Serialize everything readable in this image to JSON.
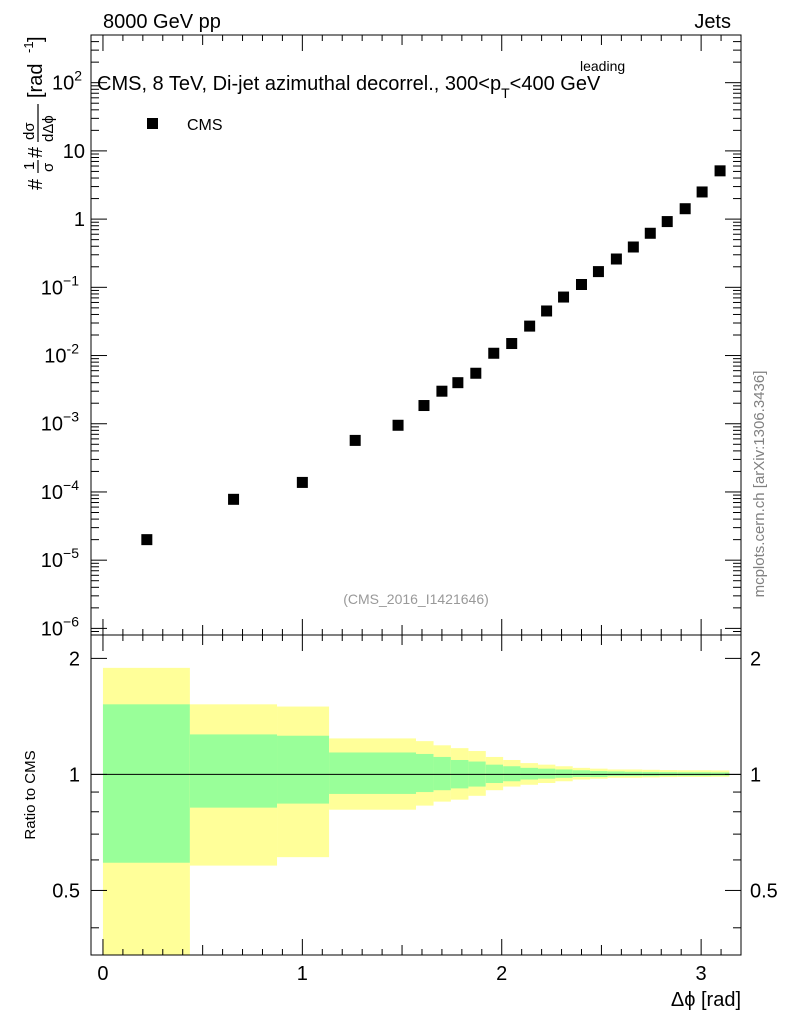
{
  "header": {
    "left": "8000 GeV pp",
    "right": "Jets"
  },
  "top_plot": {
    "title_prefix": "CMS, 8 TeV, Di-jet azimuthal decorrel., 300<p",
    "title_sub": "T",
    "title_sup": "leading",
    "title_suffix": "<400 GeV",
    "legend_label": "CMS",
    "analysis_tag": "(CMS_2016_I1421646)",
    "ylabel_parts": [
      "#",
      "1",
      "σ",
      "#",
      "dσ",
      "dΔϕ",
      "[rad",
      "-1",
      "]"
    ],
    "ytick_labels": [
      {
        "mant": "10",
        "exp": "2"
      },
      {
        "mant": "10",
        "exp": ""
      },
      {
        "mant": "1",
        "exp": ""
      },
      {
        "mant": "10",
        "exp": "−1"
      },
      {
        "mant": "10",
        "exp": "-2"
      },
      {
        "mant": "10",
        "exp": "−3"
      },
      {
        "mant": "10",
        "exp": "−4"
      },
      {
        "mant": "10",
        "exp": "−5"
      },
      {
        "mant": "10",
        "exp": "−6"
      }
    ]
  },
  "ratio_plot": {
    "ylabel": "Ratio to CMS",
    "ytick_labels": [
      "2",
      "1",
      "0.5"
    ]
  },
  "xaxis": {
    "label": "Δϕ [rad]",
    "tick_labels": [
      "0",
      "1",
      "2",
      "3"
    ]
  },
  "side_label": "mcplots.cern.ch [arXiv:1306.3436]",
  "colors": {
    "band_outer": "#ffff99",
    "band_inner": "#99ff99",
    "marker": "#000000",
    "side_text": "#808080",
    "tag_text": "#999999"
  },
  "chart_data": {
    "type": "scatter",
    "yscale": "log",
    "xlim": [
      -0.06,
      3.2
    ],
    "ylim": [
      8e-07,
      500
    ],
    "series": [
      {
        "name": "CMS",
        "x": [
          0.22,
          0.655,
          1.0,
          1.265,
          1.48,
          1.61,
          1.7,
          1.78,
          1.87,
          1.96,
          2.05,
          2.14,
          2.225,
          2.31,
          2.4,
          2.485,
          2.575,
          2.66,
          2.745,
          2.83,
          2.92,
          3.005,
          3.095
        ],
        "y": [
          2e-05,
          7.8e-05,
          0.000138,
          0.00057,
          0.00095,
          0.00185,
          0.003,
          0.004,
          0.0055,
          0.0108,
          0.015,
          0.027,
          0.045,
          0.072,
          0.11,
          0.17,
          0.26,
          0.39,
          0.62,
          0.92,
          1.42,
          2.5,
          5.1
        ]
      }
    ],
    "ratio": {
      "ylim": [
        0.34,
        2.3
      ],
      "yscale": "log",
      "reference": 1.0,
      "bands": [
        {
          "x0": 0.0,
          "x1": 0.436,
          "outer": [
            0.34,
            1.89
          ],
          "inner": [
            0.59,
            1.52
          ]
        },
        {
          "x0": 0.436,
          "x1": 0.873,
          "outer": [
            0.58,
            1.52
          ],
          "inner": [
            0.82,
            1.27
          ]
        },
        {
          "x0": 0.873,
          "x1": 1.134,
          "outer": [
            0.61,
            1.5
          ],
          "inner": [
            0.84,
            1.26
          ]
        },
        {
          "x0": 1.134,
          "x1": 1.57,
          "outer": [
            0.81,
            1.24
          ],
          "inner": [
            0.89,
            1.14
          ]
        },
        {
          "x0": 1.57,
          "x1": 1.658,
          "outer": [
            0.83,
            1.22
          ],
          "inner": [
            0.9,
            1.13
          ]
        },
        {
          "x0": 1.658,
          "x1": 1.745,
          "outer": [
            0.85,
            1.19
          ],
          "inner": [
            0.91,
            1.11
          ]
        },
        {
          "x0": 1.745,
          "x1": 1.833,
          "outer": [
            0.86,
            1.17
          ],
          "inner": [
            0.92,
            1.09
          ]
        },
        {
          "x0": 1.833,
          "x1": 1.92,
          "outer": [
            0.88,
            1.15
          ],
          "inner": [
            0.93,
            1.08
          ]
        },
        {
          "x0": 1.92,
          "x1": 2.007,
          "outer": [
            0.91,
            1.11
          ],
          "inner": [
            0.95,
            1.06
          ]
        },
        {
          "x0": 2.007,
          "x1": 2.094,
          "outer": [
            0.93,
            1.09
          ],
          "inner": [
            0.96,
            1.05
          ]
        },
        {
          "x0": 2.094,
          "x1": 2.182,
          "outer": [
            0.94,
            1.07
          ],
          "inner": [
            0.97,
            1.04
          ]
        },
        {
          "x0": 2.182,
          "x1": 2.269,
          "outer": [
            0.95,
            1.06
          ],
          "inner": [
            0.975,
            1.035
          ]
        },
        {
          "x0": 2.269,
          "x1": 2.356,
          "outer": [
            0.96,
            1.05
          ],
          "inner": [
            0.98,
            1.03
          ]
        },
        {
          "x0": 2.356,
          "x1": 2.443,
          "outer": [
            0.97,
            1.04
          ],
          "inner": [
            0.985,
            1.025
          ]
        },
        {
          "x0": 2.443,
          "x1": 2.531,
          "outer": [
            0.975,
            1.035
          ],
          "inner": [
            0.985,
            1.02
          ]
        },
        {
          "x0": 2.531,
          "x1": 2.618,
          "outer": [
            0.98,
            1.03
          ],
          "inner": [
            0.99,
            1.018
          ]
        },
        {
          "x0": 2.618,
          "x1": 2.705,
          "outer": [
            0.98,
            1.03
          ],
          "inner": [
            0.99,
            1.016
          ]
        },
        {
          "x0": 2.705,
          "x1": 2.793,
          "outer": [
            0.982,
            1.028
          ],
          "inner": [
            0.99,
            1.015
          ]
        },
        {
          "x0": 2.793,
          "x1": 2.88,
          "outer": [
            0.984,
            1.026
          ],
          "inner": [
            0.992,
            1.014
          ]
        },
        {
          "x0": 2.88,
          "x1": 2.967,
          "outer": [
            0.985,
            1.025
          ],
          "inner": [
            0.992,
            1.013
          ]
        },
        {
          "x0": 2.967,
          "x1": 3.054,
          "outer": [
            0.985,
            1.025
          ],
          "inner": [
            0.992,
            1.013
          ]
        },
        {
          "x0": 3.054,
          "x1": 3.1416,
          "outer": [
            0.986,
            1.024
          ],
          "inner": [
            0.993,
            1.012
          ]
        }
      ]
    },
    "grid": false,
    "legend_position": "top-left"
  }
}
